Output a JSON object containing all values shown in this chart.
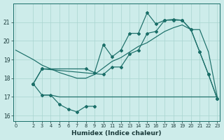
{
  "xlabel": "Humidex (Indice chaleur)",
  "background_color": "#cdecea",
  "grid_color": "#a8d5d0",
  "line_color": "#1a6e68",
  "ylim": [
    15.7,
    22.0
  ],
  "xlim": [
    -0.3,
    23.3
  ],
  "yticks": [
    16,
    17,
    18,
    19,
    20,
    21
  ],
  "xticks": [
    0,
    2,
    3,
    4,
    5,
    6,
    7,
    8,
    9,
    10,
    11,
    12,
    13,
    14,
    15,
    16,
    17,
    18,
    19,
    20,
    21,
    22,
    23
  ],
  "lineA_x": [
    0,
    2,
    3,
    4,
    5,
    6,
    7,
    8,
    9,
    10,
    11,
    12,
    13,
    14,
    15,
    16,
    17,
    18,
    19,
    20,
    21,
    22,
    23
  ],
  "lineA_y": [
    19.5,
    19.0,
    18.7,
    18.5,
    18.3,
    18.15,
    18.0,
    18.0,
    18.2,
    18.55,
    18.9,
    19.1,
    19.4,
    19.7,
    19.9,
    20.2,
    20.5,
    20.7,
    20.85,
    20.6,
    20.6,
    19.4,
    17.0
  ],
  "lineB_x": [
    2,
    3,
    10,
    11,
    12,
    13,
    14,
    15,
    16,
    17,
    18,
    19,
    20,
    21,
    22,
    23
  ],
  "lineB_y": [
    17.7,
    18.5,
    18.2,
    18.6,
    18.6,
    19.3,
    19.5,
    20.4,
    20.5,
    21.1,
    21.15,
    21.1,
    20.6,
    19.4,
    18.2,
    16.9
  ],
  "lineC_x": [
    2,
    3,
    8,
    9,
    10,
    11,
    12,
    13,
    14,
    15,
    16,
    17,
    18,
    19,
    20,
    21,
    22,
    23
  ],
  "lineC_y": [
    17.7,
    18.5,
    18.5,
    18.3,
    19.8,
    19.15,
    19.5,
    20.4,
    20.4,
    21.5,
    20.9,
    21.1,
    21.1,
    21.1,
    20.6,
    19.4,
    18.2,
    16.9
  ],
  "lineD_x": [
    3,
    4,
    5,
    6,
    7,
    8,
    9,
    10,
    11,
    12,
    13,
    14,
    15,
    16,
    17,
    18,
    19,
    20,
    21,
    22,
    23
  ],
  "lineD_y": [
    17.1,
    17.1,
    17.0,
    17.0,
    17.0,
    17.0,
    17.0,
    17.0,
    17.0,
    17.0,
    17.0,
    17.0,
    17.0,
    17.0,
    17.0,
    17.0,
    17.0,
    17.0,
    17.0,
    17.0,
    17.0
  ],
  "lineE_x": [
    2,
    3,
    4,
    5,
    6,
    7,
    8,
    9
  ],
  "lineE_y": [
    17.7,
    17.1,
    17.1,
    16.6,
    16.35,
    16.2,
    16.5,
    16.5
  ]
}
